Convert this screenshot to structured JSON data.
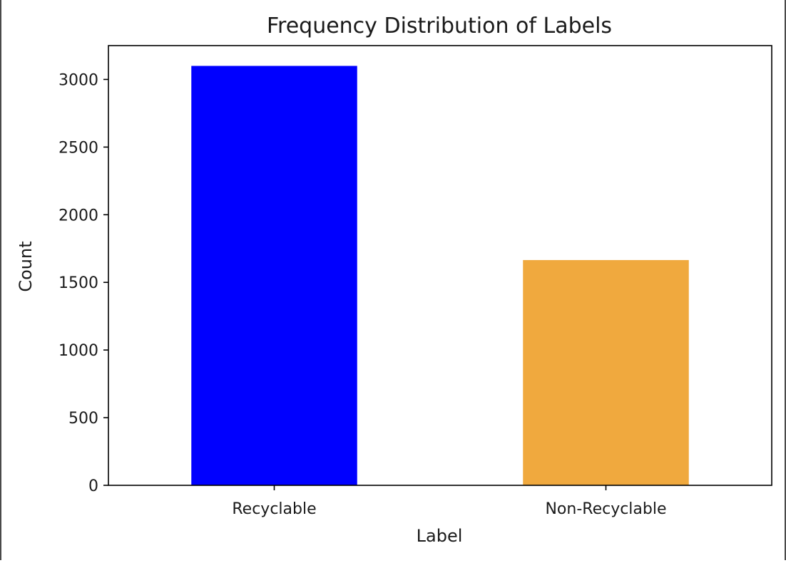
{
  "chart_data": {
    "type": "bar",
    "title": "Frequency Distribution of Labels",
    "xlabel": "Label",
    "ylabel": "Count",
    "categories": [
      "Recyclable",
      "Non-Recyclable"
    ],
    "values": [
      3100,
      1665
    ],
    "bar_colors": [
      "#0000ff",
      "#f0a93e"
    ],
    "ylim": [
      0,
      3250
    ],
    "yticks": [
      0,
      500,
      1000,
      1500,
      2000,
      2500,
      3000
    ],
    "grid": false,
    "legend": "none"
  }
}
